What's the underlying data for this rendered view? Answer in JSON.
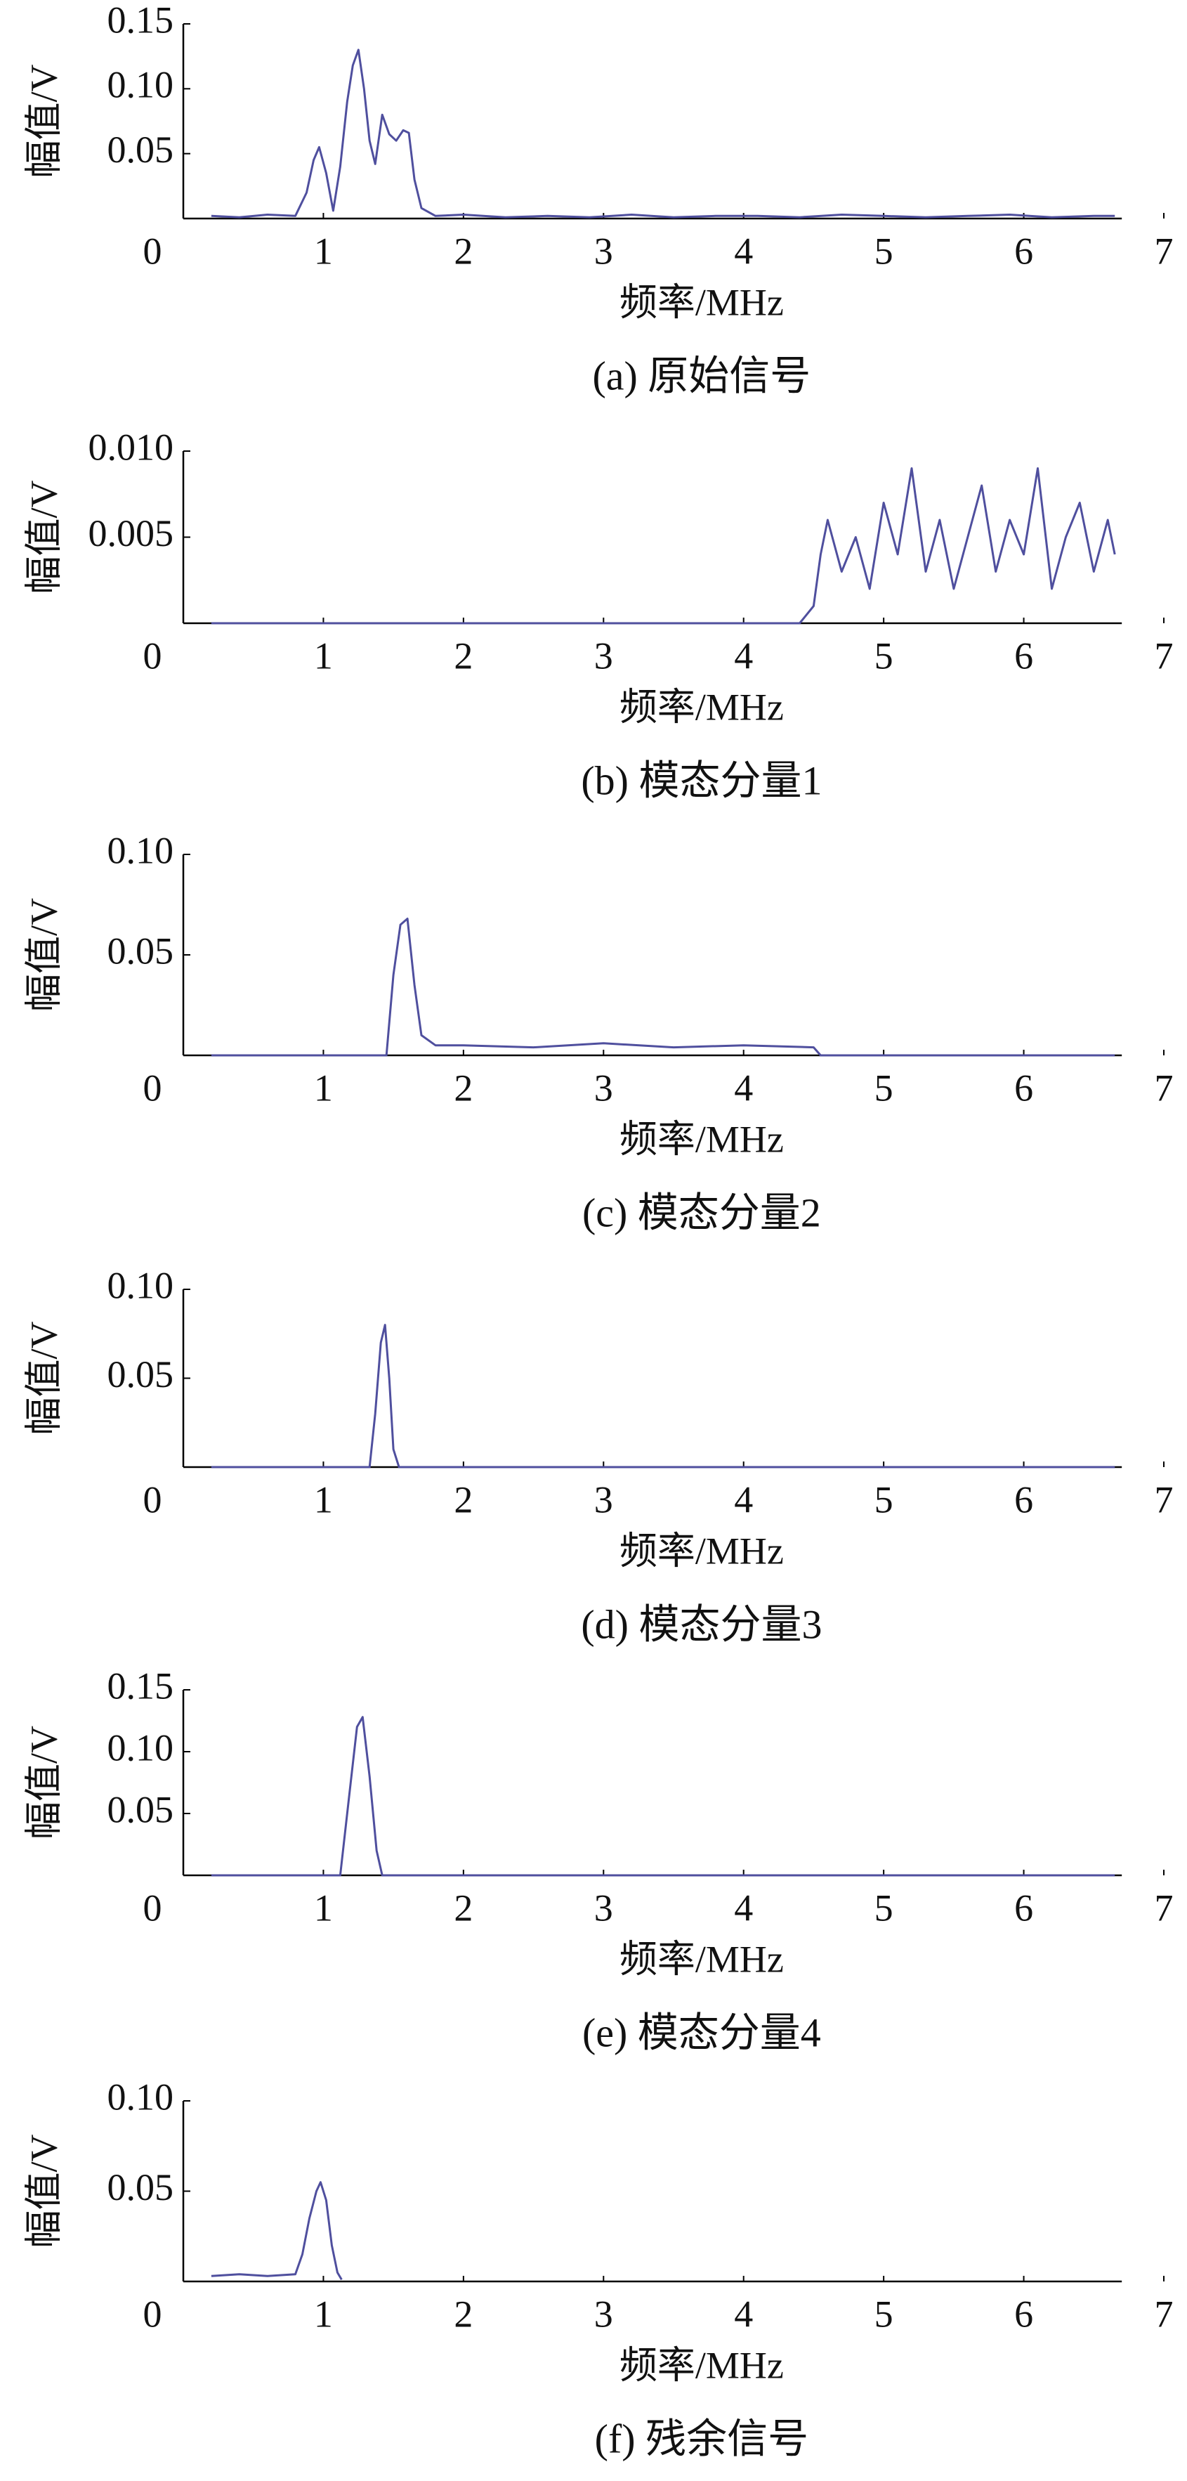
{
  "chart_data": [
    {
      "type": "line",
      "caption": "(a) 原始信号",
      "xlabel": "频率/MHz",
      "ylabel": "幅值/V",
      "color": "#4f4f9e",
      "xlim": [
        0,
        7
      ],
      "xticks": [
        0,
        1,
        2,
        3,
        4,
        5,
        6,
        7
      ],
      "ylim": [
        0,
        0.15
      ],
      "yticks": [
        0.05,
        {
          "value": 0.1,
          "label": "0.10"
        },
        0.15
      ],
      "grid": false,
      "x": [
        0.2,
        0.4,
        0.6,
        0.8,
        0.88,
        0.93,
        0.97,
        1.02,
        1.07,
        1.12,
        1.17,
        1.21,
        1.25,
        1.29,
        1.33,
        1.37,
        1.42,
        1.47,
        1.52,
        1.57,
        1.61,
        1.65,
        1.7,
        1.8,
        2.0,
        2.3,
        2.6,
        2.9,
        3.2,
        3.5,
        3.8,
        4.1,
        4.4,
        4.7,
        5.0,
        5.3,
        5.6,
        5.9,
        6.2,
        6.5,
        6.65
      ],
      "values": [
        0.002,
        0.001,
        0.003,
        0.002,
        0.02,
        0.045,
        0.055,
        0.035,
        0.006,
        0.04,
        0.09,
        0.118,
        0.13,
        0.1,
        0.06,
        0.042,
        0.08,
        0.065,
        0.06,
        0.068,
        0.066,
        0.03,
        0.008,
        0.002,
        0.003,
        0.001,
        0.002,
        0.001,
        0.003,
        0.001,
        0.002,
        0.002,
        0.001,
        0.003,
        0.002,
        0.001,
        0.002,
        0.003,
        0.001,
        0.002,
        0.002
      ]
    },
    {
      "type": "line",
      "caption": "(b) 模态分量1",
      "xlabel": "频率/MHz",
      "ylabel": "幅值/V",
      "color": "#4f4f9e",
      "xlim": [
        0,
        7
      ],
      "xticks": [
        0,
        1,
        2,
        3,
        4,
        5,
        6,
        7
      ],
      "ylim": [
        0,
        0.01
      ],
      "yticks": [
        0.005,
        {
          "value": 0.01,
          "label": "0.010"
        }
      ],
      "grid": false,
      "x": [
        0.2,
        1,
        2,
        3,
        4,
        4.4,
        4.5,
        4.55,
        4.6,
        4.7,
        4.8,
        4.9,
        5.0,
        5.1,
        5.2,
        5.3,
        5.4,
        5.5,
        5.6,
        5.7,
        5.8,
        5.9,
        6.0,
        6.1,
        6.2,
        6.3,
        6.4,
        6.5,
        6.6,
        6.65
      ],
      "values": [
        0,
        0,
        0,
        0,
        0,
        0,
        0.001,
        0.004,
        0.006,
        0.003,
        0.005,
        0.002,
        0.007,
        0.004,
        0.009,
        0.003,
        0.006,
        0.002,
        0.005,
        0.008,
        0.003,
        0.006,
        0.004,
        0.009,
        0.002,
        0.005,
        0.007,
        0.003,
        0.006,
        0.004
      ]
    },
    {
      "type": "line",
      "caption": "(c) 模态分量2",
      "xlabel": "频率/MHz",
      "ylabel": "幅值/V",
      "color": "#4f4f9e",
      "xlim": [
        0,
        7
      ],
      "xticks": [
        0,
        1,
        2,
        3,
        4,
        5,
        6,
        7
      ],
      "ylim": [
        0,
        0.1
      ],
      "yticks": [
        0.05,
        {
          "value": 0.1,
          "label": "0.10"
        }
      ],
      "grid": false,
      "x": [
        0.2,
        1,
        1.45,
        1.5,
        1.55,
        1.6,
        1.65,
        1.7,
        1.8,
        2,
        2.5,
        3,
        3.5,
        4,
        4.5,
        4.55,
        5,
        6,
        6.65
      ],
      "values": [
        0,
        0,
        0,
        0.04,
        0.065,
        0.068,
        0.035,
        0.01,
        0.005,
        0.005,
        0.004,
        0.006,
        0.004,
        0.005,
        0.004,
        0,
        0,
        0,
        0
      ]
    },
    {
      "type": "line",
      "caption": "(d) 模态分量3",
      "xlabel": "频率/MHz",
      "ylabel": "幅值/V",
      "color": "#4f4f9e",
      "xlim": [
        0,
        7
      ],
      "xticks": [
        0,
        1,
        2,
        3,
        4,
        5,
        6,
        7
      ],
      "ylim": [
        0,
        0.1
      ],
      "yticks": [
        0.05,
        {
          "value": 0.1,
          "label": "0.10"
        }
      ],
      "grid": false,
      "x": [
        0.2,
        1,
        1.33,
        1.37,
        1.41,
        1.44,
        1.47,
        1.5,
        1.54,
        2,
        4,
        6.65
      ],
      "values": [
        0,
        0,
        0,
        0.03,
        0.07,
        0.08,
        0.05,
        0.01,
        0,
        0,
        0,
        0
      ]
    },
    {
      "type": "line",
      "caption": "(e) 模态分量4",
      "xlabel": "频率/MHz",
      "ylabel": "幅值/V",
      "color": "#4f4f9e",
      "xlim": [
        0,
        7
      ],
      "xticks": [
        0,
        1,
        2,
        3,
        4,
        5,
        6,
        7
      ],
      "ylim": [
        0,
        0.15
      ],
      "yticks": [
        0.05,
        {
          "value": 0.1,
          "label": "0.10"
        },
        0.15
      ],
      "grid": false,
      "x": [
        0.2,
        1,
        1.12,
        1.18,
        1.24,
        1.28,
        1.33,
        1.38,
        1.42,
        2,
        4,
        6.65
      ],
      "values": [
        0,
        0,
        0,
        0.06,
        0.12,
        0.128,
        0.08,
        0.02,
        0,
        0,
        0,
        0
      ]
    },
    {
      "type": "line",
      "caption": "(f) 残余信号",
      "xlabel": "频率/MHz",
      "ylabel": "幅值/V",
      "color": "#4f4f9e",
      "xlim": [
        0,
        7
      ],
      "xticks": [
        0,
        1,
        2,
        3,
        4,
        5,
        6,
        7
      ],
      "ylim": [
        0,
        0.1
      ],
      "yticks": [
        0.05,
        {
          "value": 0.1,
          "label": "0.10"
        }
      ],
      "grid": false,
      "x": [
        0.2,
        0.4,
        0.6,
        0.8,
        0.85,
        0.9,
        0.95,
        0.98,
        1.02,
        1.06,
        1.1,
        1.13
      ],
      "values": [
        0.003,
        0.004,
        0.003,
        0.004,
        0.015,
        0.035,
        0.05,
        0.055,
        0.045,
        0.02,
        0.005,
        0.001
      ]
    }
  ]
}
